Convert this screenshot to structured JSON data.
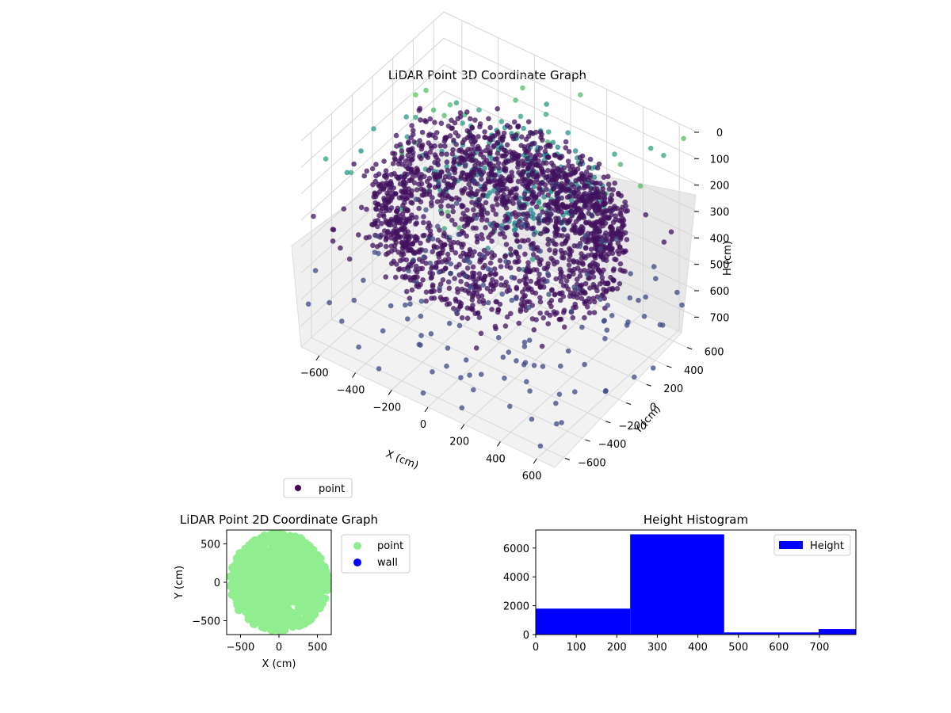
{
  "colors": {
    "point_dark": "#440154",
    "point_mid": "#3b528b",
    "point_teal": "#5ec3b1",
    "scatter2d_point": "#90ee90",
    "scatter2d_wall": "#0000ff",
    "hist_bar": "#0000ff"
  },
  "chart_data": [
    {
      "type": "scatter",
      "projection": "3d",
      "title": "LiDAR Point 3D Coordinate Graph",
      "xlabel": "X (cm)",
      "ylabel": "Y (cm)",
      "zlabel": "H (cm)",
      "x_ticks": [
        "−600",
        "−400",
        "−200",
        "0",
        "200",
        "400",
        "600"
      ],
      "y_ticks": [
        "−600",
        "−400",
        "−200",
        "0",
        "200",
        "400",
        "600"
      ],
      "z_ticks": [
        "0",
        "100",
        "200",
        "300",
        "400",
        "500",
        "600",
        "700"
      ],
      "xlim": [
        -700,
        700
      ],
      "ylim": [
        -700,
        700
      ],
      "zlim": [
        0,
        780
      ],
      "z_inverted": true,
      "grid": true,
      "legend": [
        "point"
      ],
      "legend_placement": "lower-left",
      "series": [
        {
          "name": "point",
          "description_values": "dense ring of points, radius ~450-620 cm, heights 200-450 cm, plus filled central disk and scattered outliers",
          "ring": {
            "radius_min": 450,
            "radius_max": 620,
            "h_min": 200,
            "h_max": 450
          },
          "outliers_h_range": [
            0,
            780
          ]
        }
      ]
    },
    {
      "type": "scatter",
      "title": "LiDAR Point 2D Coordinate Graph",
      "xlabel": "X (cm)",
      "ylabel": "Y (cm)",
      "x_ticks": [
        "−500",
        "0",
        "500"
      ],
      "y_ticks": [
        "−500",
        "0",
        "500"
      ],
      "xlim": [
        -680,
        680
      ],
      "ylim": [
        -680,
        680
      ],
      "legend": [
        "point",
        "wall"
      ],
      "legend_placement": "outside-right",
      "series": [
        {
          "name": "point",
          "coverage": "filled region approx. radius 600 cm"
        },
        {
          "name": "wall",
          "points": []
        }
      ]
    },
    {
      "type": "bar",
      "title": "Height Histogram",
      "xlabel": "",
      "ylabel": "",
      "x_ticks": [
        "0",
        "100",
        "200",
        "300",
        "400",
        "500",
        "600",
        "700"
      ],
      "y_ticks": [
        "0",
        "2000",
        "4000",
        "6000"
      ],
      "xlim": [
        0,
        790
      ],
      "ylim": [
        0,
        7250
      ],
      "legend": [
        "Height"
      ],
      "legend_placement": "upper-right",
      "bins": [
        {
          "start": 0,
          "end": 233,
          "count": 1800
        },
        {
          "start": 233,
          "end": 465,
          "count": 6950
        },
        {
          "start": 465,
          "end": 698,
          "count": 150
        },
        {
          "start": 698,
          "end": 790,
          "count": 380
        }
      ]
    }
  ]
}
